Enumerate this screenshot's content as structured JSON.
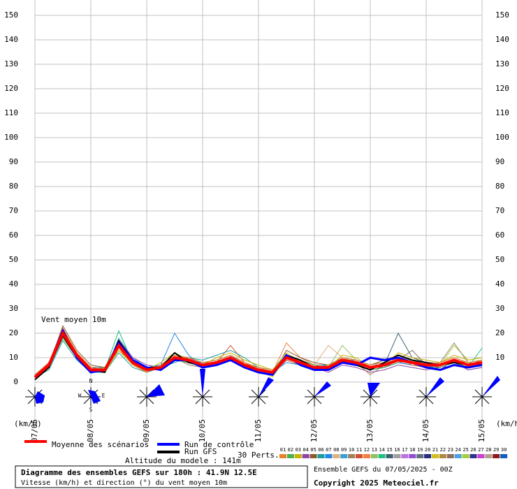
{
  "chart_data": {
    "type": "line",
    "annotation": "Vent moyen 10m",
    "ylabel": "(km/h)",
    "y2label": "(km/h)",
    "x": [
      0,
      6,
      12,
      18,
      24,
      30,
      36,
      42,
      48,
      54,
      60,
      66,
      72,
      78,
      84,
      90,
      96,
      102,
      108,
      114,
      120,
      126,
      132,
      138,
      144,
      150,
      156,
      162,
      168,
      174,
      180,
      186,
      192
    ],
    "xlim": [
      0,
      192
    ],
    "xticks": [
      {
        "value": 0,
        "label": "07/05"
      },
      {
        "value": 24,
        "label": "08/05"
      },
      {
        "value": 48,
        "label": "09/05"
      },
      {
        "value": 72,
        "label": "10/05"
      },
      {
        "value": 96,
        "label": "11/05"
      },
      {
        "value": 120,
        "label": "12/05"
      },
      {
        "value": 144,
        "label": "13/05"
      },
      {
        "value": 168,
        "label": "14/05"
      },
      {
        "value": 192,
        "label": "15/05"
      }
    ],
    "ylim": [
      0,
      150
    ],
    "yticks": [
      0,
      10,
      20,
      30,
      40,
      50,
      60,
      70,
      80,
      90,
      100,
      110,
      120,
      130,
      140,
      150
    ],
    "y2lim": [
      0,
      150
    ],
    "y2ticks": [
      10,
      20,
      30,
      40,
      50,
      60,
      70,
      80,
      90,
      100,
      110,
      120,
      130,
      140,
      150
    ],
    "grid": true,
    "compass": [
      "N",
      "W",
      "E",
      "S"
    ],
    "perturbations_label": "30 Perts.",
    "altitude": "Altitude du modele : 141m",
    "footer_title": "Diagramme des ensembles GEFS sur 180h : 41.9N 12.5E",
    "footer_subtitle": "Vitesse (km/h) et direction (°) du vent moyen 10m",
    "run_info": "Ensemble GEFS du 07/05/2025 - 00Z",
    "copyright": "Copyright 2025 Meteociel.fr",
    "series": [
      {
        "name": "Moyenne des scénarios",
        "color": "#ff0000",
        "values": [
          2,
          7,
          20,
          11,
          5,
          5,
          15,
          8,
          5,
          6,
          10,
          9,
          7,
          8,
          10,
          7,
          5,
          4,
          10,
          8,
          6,
          6,
          9,
          8,
          6,
          7,
          9,
          8,
          7,
          7,
          9,
          7,
          8
        ]
      },
      {
        "name": "Run de contrôle",
        "color": "#0000ff",
        "values": [
          2,
          7,
          21,
          10,
          4,
          5,
          16,
          9,
          6,
          5,
          9,
          9,
          6,
          7,
          9,
          6,
          4,
          3,
          11,
          7,
          5,
          5,
          8,
          7,
          10,
          9,
          10,
          8,
          6,
          5,
          7,
          6,
          7
        ]
      },
      {
        "name": "Run GFS",
        "color": "#000000",
        "values": [
          1,
          6,
          19,
          10,
          5,
          4,
          17,
          9,
          6,
          6,
          12,
          8,
          7,
          8,
          10,
          7,
          4,
          3,
          11,
          9,
          6,
          6,
          9,
          7,
          5,
          8,
          11,
          9,
          8,
          7,
          8,
          7,
          8
        ]
      },
      {
        "name": "01",
        "color": "#e8812a",
        "values": [
          3,
          8,
          22,
          12,
          6,
          5,
          14,
          7,
          4,
          7,
          11,
          10,
          8,
          9,
          11,
          8,
          6,
          5,
          9,
          7,
          5,
          7,
          10,
          9,
          7,
          8,
          10,
          7,
          6,
          8,
          10,
          8,
          9
        ]
      },
      {
        "name": "02",
        "color": "#4caf50",
        "values": [
          2,
          6,
          18,
          10,
          4,
          6,
          16,
          9,
          6,
          5,
          9,
          8,
          6,
          7,
          9,
          6,
          4,
          3,
          11,
          9,
          7,
          5,
          8,
          7,
          5,
          6,
          8,
          9,
          8,
          6,
          8,
          6,
          7
        ]
      },
      {
        "name": "03",
        "color": "#c8b400",
        "values": [
          1,
          7,
          21,
          12,
          5,
          4,
          13,
          7,
          5,
          8,
          12,
          9,
          7,
          10,
          12,
          9,
          7,
          5,
          12,
          8,
          5,
          6,
          11,
          10,
          6,
          7,
          12,
          10,
          9,
          8,
          11,
          9,
          10
        ]
      },
      {
        "name": "04",
        "color": "#8e44ad",
        "values": [
          3,
          8,
          19,
          11,
          6,
          5,
          17,
          10,
          7,
          6,
          9,
          8,
          6,
          8,
          10,
          7,
          5,
          4,
          9,
          7,
          6,
          4,
          7,
          6,
          4,
          5,
          7,
          6,
          5,
          6,
          8,
          5,
          6
        ]
      },
      {
        "name": "05",
        "color": "#8b5a2b",
        "values": [
          2,
          7,
          23,
          13,
          7,
          6,
          15,
          8,
          5,
          5,
          10,
          9,
          7,
          7,
          9,
          6,
          4,
          3,
          13,
          10,
          8,
          7,
          10,
          9,
          7,
          9,
          11,
          9,
          7,
          7,
          9,
          7,
          9
        ]
      },
      {
        "name": "06",
        "color": "#1a9c9c",
        "values": [
          2,
          5,
          17,
          9,
          4,
          4,
          12,
          6,
          4,
          6,
          8,
          10,
          9,
          11,
          13,
          10,
          6,
          5,
          10,
          8,
          6,
          6,
          9,
          8,
          6,
          7,
          9,
          8,
          7,
          5,
          7,
          6,
          7
        ]
      },
      {
        "name": "07",
        "color": "#1e88e5",
        "values": [
          1,
          6,
          20,
          11,
          5,
          5,
          16,
          9,
          6,
          7,
          20,
          11,
          6,
          7,
          9,
          7,
          5,
          4,
          8,
          7,
          5,
          5,
          8,
          7,
          5,
          6,
          8,
          7,
          6,
          7,
          9,
          7,
          8
        ]
      },
      {
        "name": "08",
        "color": "#e0b080",
        "values": [
          2,
          7,
          21,
          10,
          5,
          6,
          14,
          7,
          5,
          5,
          11,
          8,
          7,
          8,
          10,
          8,
          6,
          4,
          10,
          9,
          7,
          15,
          10,
          8,
          6,
          7,
          10,
          9,
          8,
          8,
          10,
          8,
          9
        ]
      },
      {
        "name": "09",
        "color": "#3aa0d0",
        "values": [
          3,
          8,
          19,
          12,
          6,
          4,
          18,
          10,
          6,
          6,
          10,
          9,
          8,
          9,
          11,
          7,
          5,
          4,
          11,
          8,
          6,
          7,
          9,
          9,
          7,
          8,
          9,
          8,
          7,
          7,
          8,
          7,
          8
        ]
      },
      {
        "name": "10",
        "color": "#a08060",
        "values": [
          2,
          7,
          20,
          11,
          4,
          5,
          15,
          8,
          5,
          7,
          10,
          7,
          6,
          7,
          9,
          6,
          4,
          3,
          9,
          7,
          5,
          6,
          9,
          7,
          6,
          7,
          10,
          8,
          6,
          8,
          16,
          8,
          7
        ]
      },
      {
        "name": "11",
        "color": "#d05030",
        "values": [
          1,
          6,
          22,
          12,
          5,
          6,
          13,
          8,
          6,
          6,
          9,
          10,
          7,
          8,
          15,
          8,
          5,
          4,
          10,
          9,
          6,
          5,
          8,
          8,
          6,
          6,
          8,
          7,
          7,
          6,
          8,
          6,
          7
        ]
      },
      {
        "name": "12",
        "color": "#f08040",
        "values": [
          2,
          7,
          18,
          10,
          5,
          5,
          16,
          9,
          6,
          5,
          11,
          9,
          8,
          8,
          10,
          7,
          5,
          4,
          16,
          10,
          7,
          6,
          9,
          8,
          6,
          7,
          9,
          8,
          7,
          7,
          9,
          7,
          8
        ]
      },
      {
        "name": "13",
        "color": "#90c060",
        "values": [
          3,
          8,
          21,
          11,
          6,
          4,
          14,
          8,
          4,
          6,
          10,
          9,
          6,
          7,
          9,
          7,
          6,
          5,
          10,
          8,
          5,
          6,
          15,
          9,
          7,
          8,
          10,
          9,
          8,
          7,
          9,
          8,
          9
        ]
      },
      {
        "name": "14",
        "color": "#20c080",
        "values": [
          2,
          6,
          20,
          11,
          5,
          5,
          21,
          8,
          5,
          7,
          9,
          8,
          7,
          8,
          10,
          7,
          4,
          3,
          9,
          7,
          6,
          7,
          9,
          7,
          5,
          6,
          8,
          7,
          6,
          6,
          8,
          6,
          14
        ]
      },
      {
        "name": "15",
        "color": "#406070",
        "values": [
          2,
          7,
          19,
          12,
          6,
          6,
          15,
          7,
          5,
          6,
          11,
          10,
          8,
          9,
          11,
          8,
          6,
          4,
          11,
          9,
          6,
          6,
          10,
          8,
          6,
          7,
          20,
          10,
          8,
          7,
          9,
          7,
          8
        ]
      },
      {
        "name": "16",
        "color": "#a0a0a0",
        "values": [
          1,
          7,
          20,
          10,
          4,
          5,
          15,
          8,
          6,
          5,
          10,
          9,
          7,
          7,
          9,
          6,
          5,
          4,
          10,
          8,
          6,
          5,
          8,
          7,
          5,
          10,
          9,
          8,
          7,
          8,
          10,
          8,
          9
        ]
      },
      {
        "name": "17",
        "color": "#c070e0",
        "values": [
          2,
          8,
          21,
          11,
          5,
          4,
          16,
          9,
          5,
          6,
          9,
          8,
          6,
          8,
          10,
          7,
          5,
          4,
          9,
          7,
          5,
          6,
          9,
          8,
          6,
          7,
          10,
          9,
          7,
          7,
          9,
          7,
          8
        ]
      },
      {
        "name": "18",
        "color": "#9050d0",
        "values": [
          3,
          7,
          19,
          11,
          5,
          5,
          14,
          8,
          6,
          7,
          10,
          9,
          7,
          8,
          10,
          7,
          4,
          3,
          10,
          8,
          6,
          6,
          9,
          8,
          6,
          6,
          9,
          8,
          7,
          6,
          8,
          6,
          7
        ]
      },
      {
        "name": "19",
        "color": "#607080",
        "values": [
          2,
          6,
          20,
          12,
          6,
          6,
          15,
          7,
          4,
          6,
          11,
          10,
          8,
          9,
          11,
          8,
          6,
          5,
          11,
          9,
          7,
          7,
          10,
          9,
          7,
          8,
          10,
          9,
          8,
          8,
          10,
          8,
          9
        ]
      },
      {
        "name": "20",
        "color": "#2a2a80",
        "values": [
          2,
          7,
          21,
          11,
          5,
          5,
          16,
          8,
          5,
          5,
          10,
          8,
          6,
          7,
          9,
          6,
          5,
          4,
          9,
          7,
          5,
          5,
          8,
          7,
          5,
          6,
          8,
          7,
          6,
          6,
          8,
          6,
          7
        ]
      },
      {
        "name": "21",
        "color": "#d0c020",
        "values": [
          1,
          7,
          18,
          10,
          5,
          4,
          15,
          9,
          6,
          6,
          10,
          9,
          7,
          8,
          10,
          7,
          5,
          2,
          10,
          8,
          6,
          6,
          9,
          8,
          6,
          7,
          9,
          8,
          7,
          7,
          9,
          7,
          8
        ]
      },
      {
        "name": "22",
        "color": "#b08840",
        "values": [
          2,
          8,
          20,
          11,
          4,
          5,
          14,
          8,
          5,
          7,
          11,
          9,
          7,
          8,
          10,
          7,
          5,
          4,
          10,
          8,
          6,
          6,
          9,
          8,
          3,
          7,
          9,
          8,
          7,
          7,
          9,
          7,
          8
        ]
      },
      {
        "name": "23",
        "color": "#8a7060",
        "values": [
          3,
          7,
          22,
          12,
          5,
          5,
          15,
          7,
          5,
          6,
          10,
          9,
          7,
          8,
          10,
          7,
          5,
          4,
          10,
          8,
          6,
          6,
          9,
          8,
          6,
          7,
          9,
          13,
          7,
          7,
          9,
          7,
          8
        ]
      },
      {
        "name": "24",
        "color": "#50a0e0",
        "values": [
          2,
          6,
          20,
          11,
          5,
          6,
          16,
          8,
          6,
          6,
          9,
          8,
          6,
          7,
          9,
          6,
          4,
          3,
          9,
          7,
          5,
          5,
          8,
          7,
          5,
          6,
          8,
          7,
          6,
          7,
          9,
          7,
          8
        ]
      },
      {
        "name": "25",
        "color": "#a0d040",
        "values": [
          2,
          7,
          19,
          11,
          6,
          5,
          15,
          8,
          5,
          6,
          10,
          9,
          7,
          8,
          10,
          7,
          5,
          4,
          10,
          8,
          6,
          6,
          9,
          8,
          6,
          7,
          9,
          8,
          7,
          7,
          15,
          9,
          10
        ]
      },
      {
        "name": "26",
        "color": "#303090",
        "values": [
          1,
          7,
          20,
          11,
          5,
          4,
          15,
          8,
          5,
          6,
          10,
          9,
          7,
          8,
          10,
          7,
          5,
          4,
          10,
          8,
          6,
          6,
          9,
          8,
          6,
          7,
          9,
          8,
          7,
          5,
          9,
          5,
          6
        ]
      },
      {
        "name": "27",
        "color": "#d040d0",
        "values": [
          2,
          7,
          21,
          11,
          5,
          5,
          14,
          8,
          5,
          6,
          10,
          9,
          7,
          8,
          10,
          7,
          5,
          4,
          10,
          8,
          6,
          6,
          9,
          8,
          6,
          7,
          9,
          8,
          7,
          7,
          9,
          7,
          8
        ]
      },
      {
        "name": "28",
        "color": "#b0a090",
        "values": [
          2,
          6,
          20,
          10,
          5,
          5,
          15,
          9,
          6,
          6,
          10,
          9,
          7,
          8,
          10,
          7,
          6,
          5,
          10,
          8,
          6,
          6,
          9,
          8,
          6,
          7,
          9,
          8,
          7,
          7,
          9,
          7,
          8
        ]
      },
      {
        "name": "29",
        "color": "#8b1a1a",
        "values": [
          3,
          7,
          20,
          11,
          5,
          5,
          15,
          8,
          5,
          6,
          10,
          9,
          7,
          8,
          10,
          7,
          5,
          4,
          10,
          8,
          6,
          6,
          9,
          8,
          6,
          7,
          9,
          8,
          7,
          7,
          9,
          7,
          8
        ]
      },
      {
        "name": "30",
        "color": "#1060c0",
        "values": [
          2,
          7,
          20,
          11,
          5,
          5,
          15,
          8,
          5,
          6,
          10,
          9,
          7,
          8,
          10,
          7,
          5,
          4,
          10,
          8,
          6,
          6,
          9,
          8,
          6,
          7,
          9,
          8,
          7,
          7,
          9,
          7,
          8
        ]
      }
    ]
  }
}
